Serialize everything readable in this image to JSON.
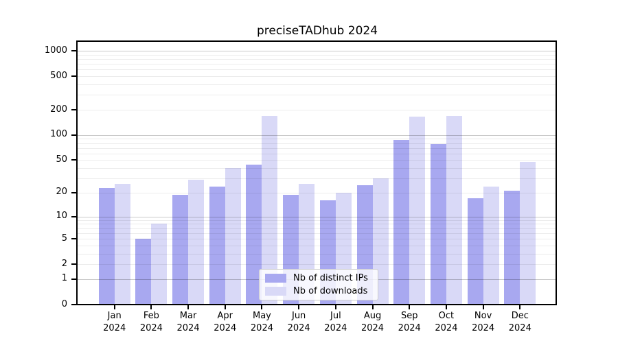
{
  "title": "preciseTADhub 2024",
  "chart_data": {
    "type": "bar",
    "title": "preciseTADhub 2024",
    "categories": [
      "Jan 2024",
      "Feb 2024",
      "Mar 2024",
      "Apr 2024",
      "May 2024",
      "Jun 2024",
      "Jul 2024",
      "Aug 2024",
      "Sep 2024",
      "Oct 2024",
      "Nov 2024",
      "Dec 2024"
    ],
    "series": [
      {
        "name": "Nb of distinct IPs",
        "color": "#a8a8f0",
        "values": [
          23,
          5,
          19,
          24,
          44,
          19,
          16,
          25,
          88,
          78,
          17,
          21
        ]
      },
      {
        "name": "Nb of downloads",
        "color": "#d9d9f7",
        "values": [
          26,
          8,
          29,
          40,
          170,
          26,
          20,
          30,
          166,
          170,
          24,
          48
        ]
      }
    ],
    "xlabel": "",
    "ylabel": "",
    "yscale": "log1p",
    "yticks": [
      0,
      1,
      2,
      5,
      10,
      20,
      50,
      100,
      200,
      500,
      1000
    ],
    "ylim": [
      0,
      1277
    ],
    "major_grid_values": [
      1,
      10,
      100,
      1000
    ],
    "grid": "horizontal, major and minor",
    "legend_position": "lower center",
    "colors": {
      "axis": "#000000",
      "major_grid": "#cccccc",
      "minor_grid": "#ececec",
      "background": "#ffffff"
    }
  }
}
